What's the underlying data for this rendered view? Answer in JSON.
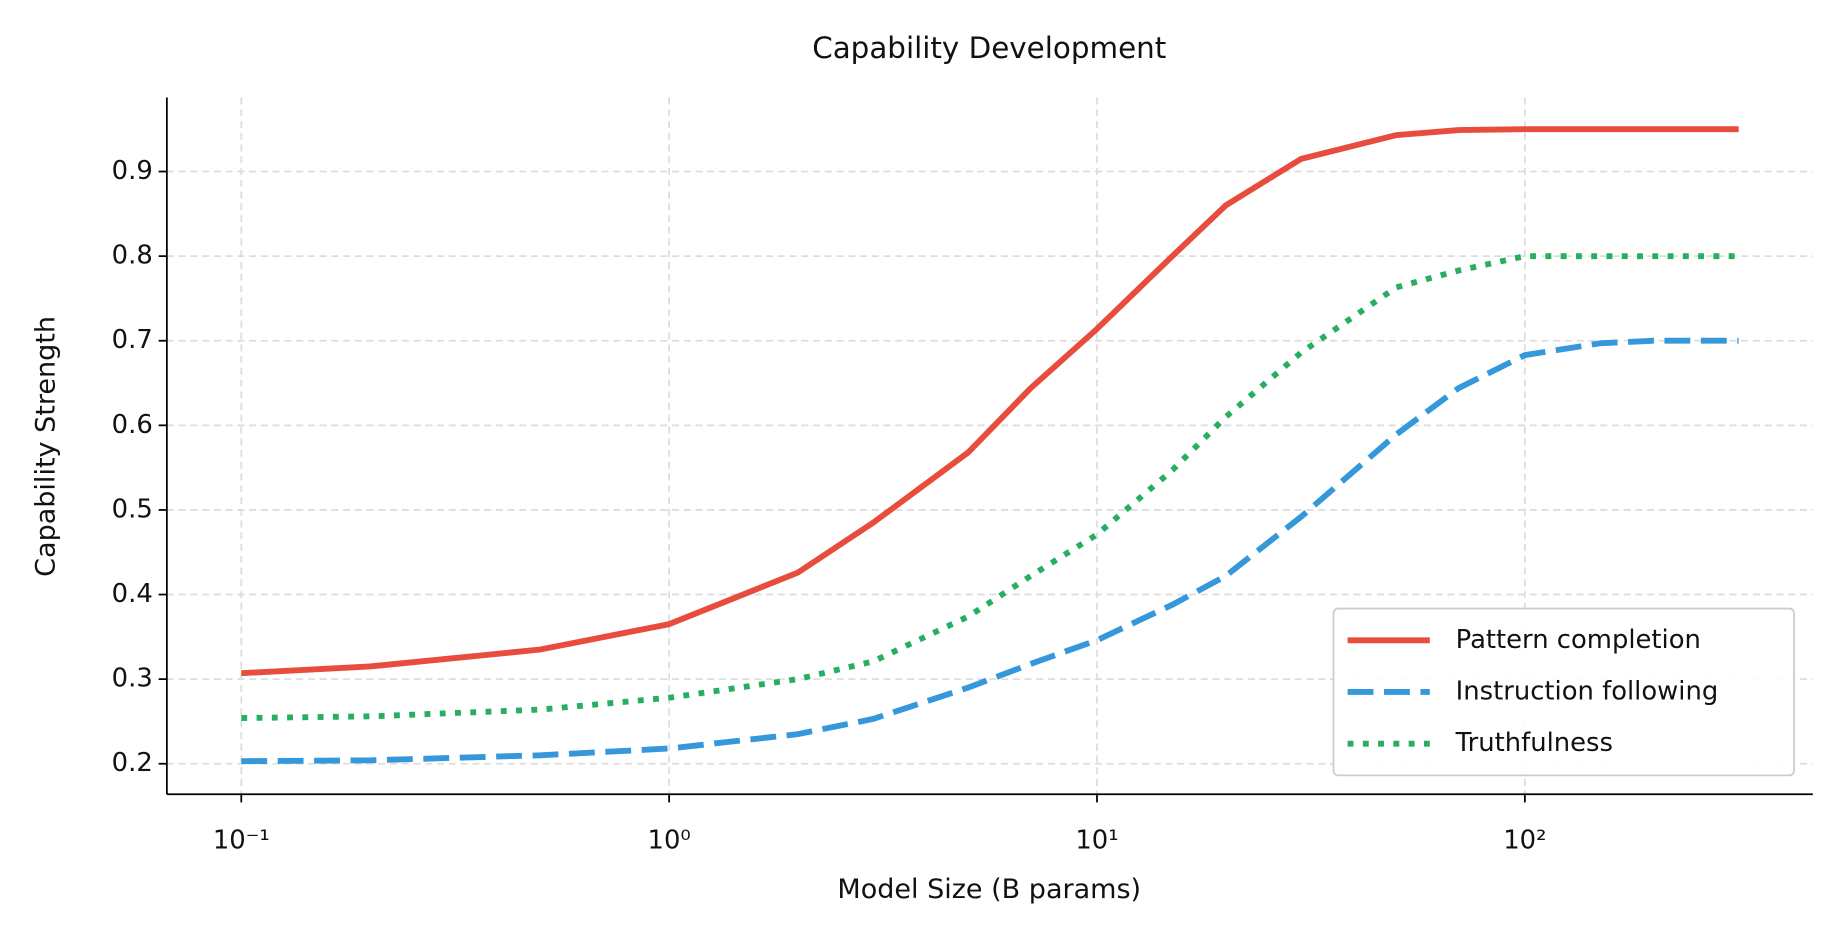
{
  "chart_data": {
    "type": "line",
    "title": "Capability Development",
    "x_label": "Model Size (B params)",
    "y_label": "Capability Strength",
    "x_scale": "log",
    "x": [
      0.1,
      0.2,
      0.5,
      1,
      2,
      3,
      5,
      7,
      10,
      15,
      20,
      30,
      50,
      70,
      100,
      150,
      200,
      316
    ],
    "series": [
      {
        "name": "Pattern completion",
        "color": "#e74c3c",
        "style": "solid",
        "values": [
          0.307,
          0.315,
          0.335,
          0.365,
          0.426,
          0.485,
          0.568,
          0.644,
          0.714,
          0.8,
          0.86,
          0.915,
          0.943,
          0.949,
          0.95,
          0.95,
          0.95,
          0.95
        ]
      },
      {
        "name": "Instruction following",
        "color": "#3498db",
        "style": "dashed",
        "values": [
          0.203,
          0.204,
          0.21,
          0.218,
          0.235,
          0.253,
          0.29,
          0.318,
          0.346,
          0.388,
          0.422,
          0.492,
          0.589,
          0.644,
          0.683,
          0.697,
          0.7,
          0.7
        ]
      },
      {
        "name": "Truthfulness",
        "color": "#27ae60",
        "style": "dotted",
        "values": [
          0.254,
          0.256,
          0.264,
          0.278,
          0.3,
          0.321,
          0.374,
          0.422,
          0.471,
          0.547,
          0.61,
          0.686,
          0.763,
          0.783,
          0.8,
          0.8,
          0.8,
          0.8
        ]
      }
    ],
    "xlim": [
      0.067,
      471
    ],
    "ylim": [
      0.164,
      0.9875
    ],
    "xticks": [
      {
        "value": 0.1,
        "label": "10⁻¹"
      },
      {
        "value": 1,
        "label": "10⁰"
      },
      {
        "value": 10,
        "label": "10¹"
      },
      {
        "value": 100,
        "label": "10²"
      }
    ],
    "yticks": [
      0.2,
      0.3,
      0.4,
      0.5,
      0.6,
      0.7,
      0.8,
      0.9
    ],
    "grid": true,
    "legend": "lower right"
  }
}
